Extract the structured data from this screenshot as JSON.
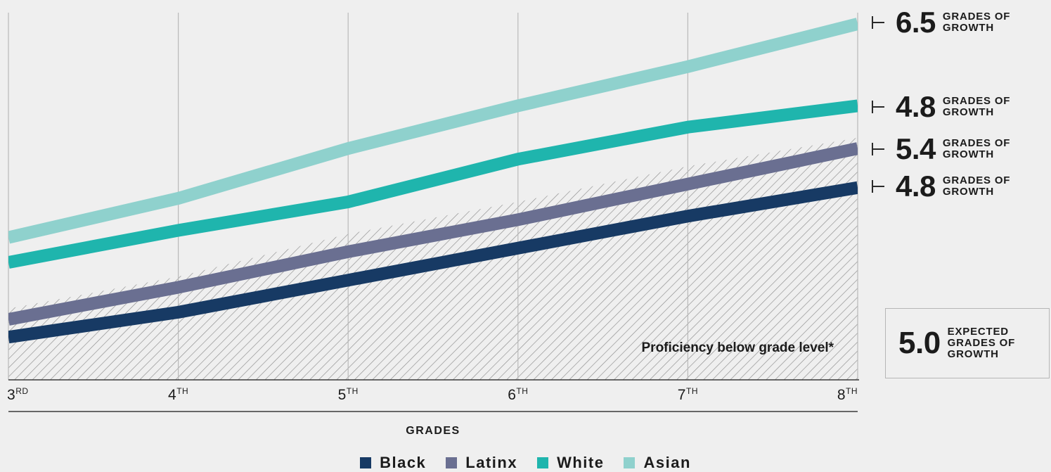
{
  "chart_data": {
    "type": "line",
    "categories": [
      "3RD",
      "4TH",
      "5TH",
      "6TH",
      "7TH",
      "8TH"
    ],
    "category_parts": [
      {
        "num": "3",
        "sup": "RD"
      },
      {
        "num": "4",
        "sup": "TH"
      },
      {
        "num": "5",
        "sup": "TH"
      },
      {
        "num": "6",
        "sup": "TH"
      },
      {
        "num": "7",
        "sup": "TH"
      },
      {
        "num": "8",
        "sup": "TH"
      }
    ],
    "xlabel": "GRADES",
    "ylim": [
      0,
      10
    ],
    "series": [
      {
        "name": "Asian",
        "color": "#8fd1cd",
        "values": [
          4.0,
          5.1,
          6.5,
          7.7,
          8.8,
          10.0
        ],
        "growth": "6.5"
      },
      {
        "name": "White",
        "color": "#1fb5ad",
        "values": [
          3.3,
          4.2,
          5.0,
          6.2,
          7.1,
          7.7
        ],
        "growth": "4.8"
      },
      {
        "name": "Latinx",
        "color": "#6a6f91",
        "values": [
          1.7,
          2.6,
          3.6,
          4.5,
          5.5,
          6.5
        ],
        "growth": "5.4"
      },
      {
        "name": "Black",
        "color": "#173a64",
        "values": [
          1.2,
          1.9,
          2.8,
          3.7,
          4.6,
          5.4
        ],
        "growth": "4.8"
      }
    ],
    "shaded_region": {
      "label": "Proficiency below grade level*",
      "upper_values": [
        2.0,
        2.9,
        4.1,
        5.0,
        6.0,
        6.8
      ]
    },
    "growth_unit": [
      "GRADES OF",
      "GROWTH"
    ],
    "expected": {
      "value": "5.0",
      "lines": [
        "EXPECTED",
        "GRADES OF",
        "GROWTH"
      ]
    },
    "legend_order": [
      "Black",
      "Latinx",
      "White",
      "Asian"
    ],
    "grid": true,
    "legend_position": "bottom-center"
  }
}
